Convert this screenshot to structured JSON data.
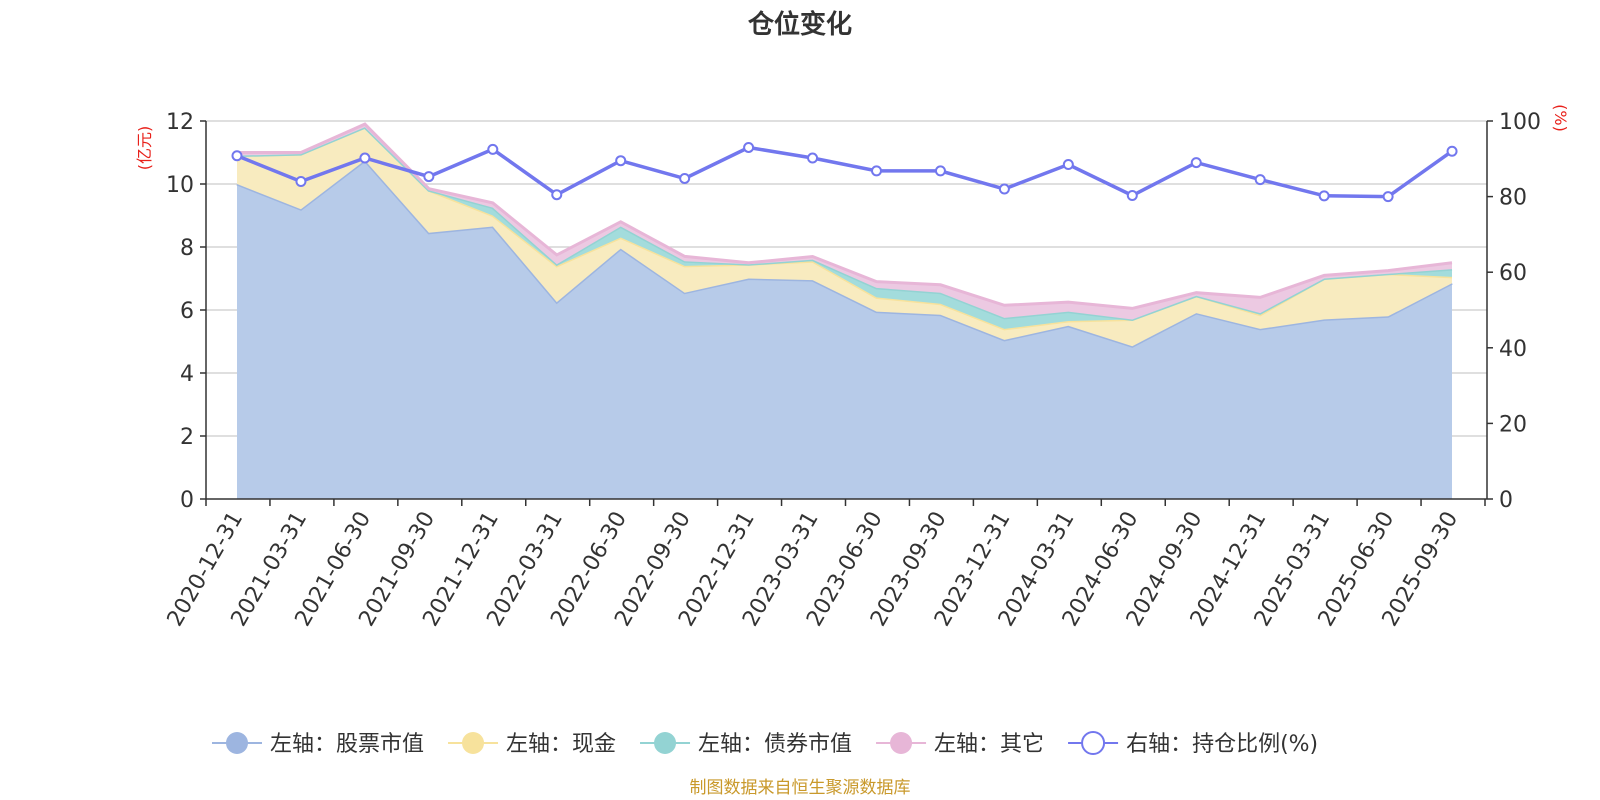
{
  "chart_data": {
    "type": "area",
    "title": "仓位变化",
    "left_axis_unit": "(亿元)",
    "right_axis_unit": "(%)",
    "left_ylim": [
      0,
      12
    ],
    "left_ticks": [
      0,
      2,
      4,
      6,
      8,
      10,
      12
    ],
    "right_ylim": [
      0,
      100
    ],
    "right_ticks": [
      0,
      20,
      40,
      60,
      80,
      100
    ],
    "categories": [
      "2020-12-31",
      "2021-03-31",
      "2021-06-30",
      "2021-09-30",
      "2021-12-31",
      "2022-03-31",
      "2022-06-30",
      "2022-09-30",
      "2022-12-31",
      "2023-03-31",
      "2023-06-30",
      "2023-09-30",
      "2023-12-31",
      "2024-03-31",
      "2024-06-30",
      "2024-09-30",
      "2024-12-31",
      "2025-03-31",
      "2025-06-30",
      "2025-09-30"
    ],
    "series": [
      {
        "name": "左轴：股票市值",
        "axis": "left",
        "stack": true,
        "color": "#9db5e0",
        "fill": "#b7cbe9",
        "values": [
          10.0,
          9.2,
          10.75,
          8.45,
          8.65,
          6.25,
          7.95,
          6.55,
          7.0,
          6.95,
          5.95,
          5.85,
          5.05,
          5.5,
          4.85,
          5.9,
          5.4,
          5.7,
          5.8,
          6.85
        ]
      },
      {
        "name": "左轴：现金",
        "axis": "left",
        "stack": true,
        "color": "#f7e29c",
        "fill": "#f8ebbf",
        "values": [
          0.9,
          1.75,
          1.05,
          1.35,
          0.35,
          1.15,
          0.35,
          0.85,
          0.45,
          0.6,
          0.45,
          0.35,
          0.35,
          0.15,
          0.85,
          0.55,
          0.45,
          1.3,
          1.35,
          0.2
        ]
      },
      {
        "name": "左轴：债券市值",
        "axis": "left",
        "stack": true,
        "color": "#93d3d3",
        "fill": "#a3dcdc",
        "values": [
          0.0,
          0.0,
          0.0,
          0.0,
          0.25,
          0.05,
          0.35,
          0.15,
          0.0,
          0.05,
          0.3,
          0.35,
          0.35,
          0.3,
          0.0,
          0.0,
          0.05,
          0.0,
          0.0,
          0.25
        ]
      },
      {
        "name": "左轴：其它",
        "axis": "left",
        "stack": true,
        "color": "#e7b6d7",
        "fill": "#ecc9e2",
        "values": [
          0.1,
          0.05,
          0.1,
          0.05,
          0.15,
          0.3,
          0.15,
          0.15,
          0.05,
          0.1,
          0.2,
          0.25,
          0.4,
          0.3,
          0.35,
          0.1,
          0.5,
          0.1,
          0.1,
          0.2
        ]
      },
      {
        "name": "右轴：持仓比例(%)",
        "axis": "right",
        "stack": false,
        "color": "#7277ee",
        "values": [
          90.8,
          84.0,
          90.2,
          85.3,
          92.5,
          80.5,
          89.5,
          84.8,
          93.0,
          90.2,
          86.8,
          86.8,
          82.0,
          88.5,
          80.3,
          89.0,
          84.5,
          80.2,
          80.0,
          92.0
        ]
      }
    ]
  },
  "source_text": "制图数据来自恒生聚源数据库"
}
